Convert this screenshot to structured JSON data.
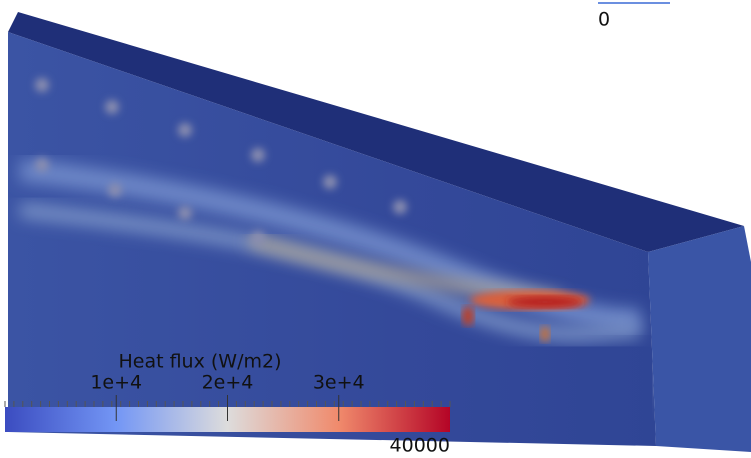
{
  "colorbar": {
    "title": "Heat flux (W/m2)",
    "range": [
      0,
      40000
    ],
    "ticks": [
      {
        "value": 10000,
        "label": "1e+4"
      },
      {
        "value": 20000,
        "label": "2e+4"
      },
      {
        "value": 30000,
        "label": "3e+4"
      }
    ]
  }
}
